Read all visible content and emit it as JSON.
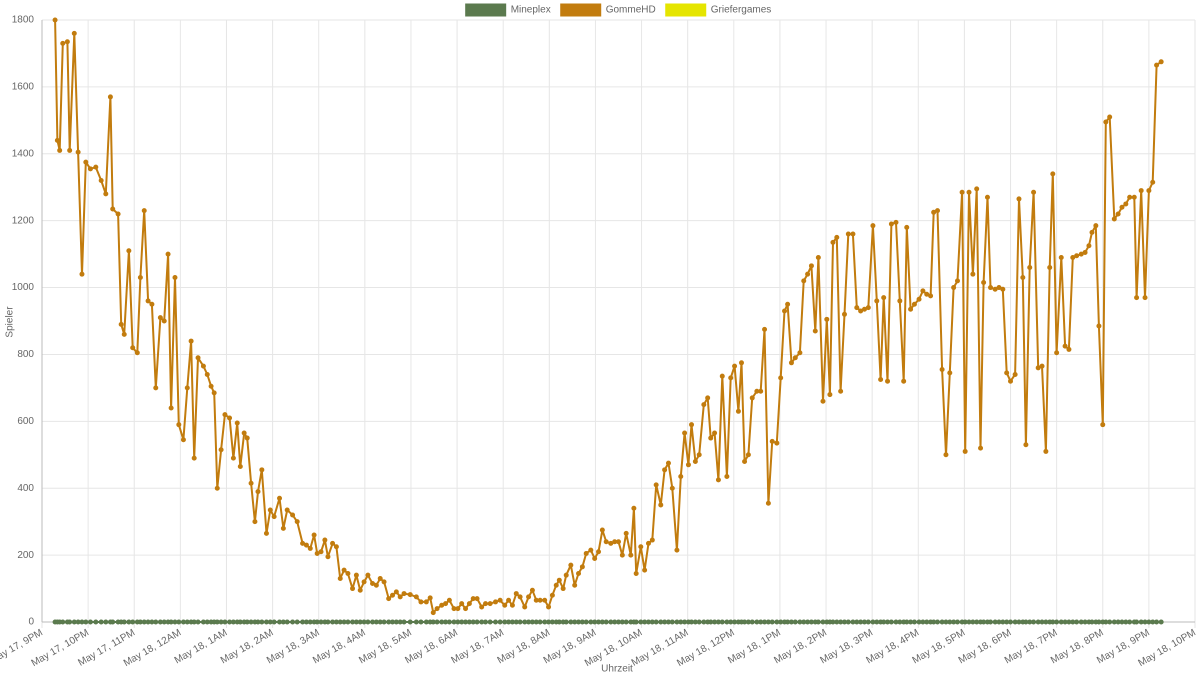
{
  "chart_data": {
    "type": "line",
    "xlabel": "Uhrzeit",
    "ylabel": "Spieler",
    "grid": true,
    "legend": "top",
    "xlim": [
      0,
      1500
    ],
    "xticks": [
      {
        "value": 0,
        "label": "May 17, 9PM"
      },
      {
        "value": 60,
        "label": "May 17, 10PM"
      },
      {
        "value": 120,
        "label": "May 17, 11PM"
      },
      {
        "value": 180,
        "label": "May 18, 12AM"
      },
      {
        "value": 240,
        "label": "May 18, 1AM"
      },
      {
        "value": 300,
        "label": "May 18, 2AM"
      },
      {
        "value": 360,
        "label": "May 18, 3AM"
      },
      {
        "value": 420,
        "label": "May 18, 4AM"
      },
      {
        "value": 480,
        "label": "May 18, 5AM"
      },
      {
        "value": 540,
        "label": "May 18, 6AM"
      },
      {
        "value": 600,
        "label": "May 18, 7AM"
      },
      {
        "value": 660,
        "label": "May 18, 8AM"
      },
      {
        "value": 720,
        "label": "May 18, 9AM"
      },
      {
        "value": 780,
        "label": "May 18, 10AM"
      },
      {
        "value": 840,
        "label": "May 18, 11AM"
      },
      {
        "value": 900,
        "label": "May 18, 12PM"
      },
      {
        "value": 960,
        "label": "May 18, 1PM"
      },
      {
        "value": 1020,
        "label": "May 18, 2PM"
      },
      {
        "value": 1080,
        "label": "May 18, 3PM"
      },
      {
        "value": 1140,
        "label": "May 18, 4PM"
      },
      {
        "value": 1200,
        "label": "May 18, 5PM"
      },
      {
        "value": 1260,
        "label": "May 18, 6PM"
      },
      {
        "value": 1320,
        "label": "May 18, 7PM"
      },
      {
        "value": 1380,
        "label": "May 18, 8PM"
      },
      {
        "value": 1440,
        "label": "May 18, 9PM"
      },
      {
        "value": 1500,
        "label": "May 18, 10PM"
      }
    ],
    "ylim": [
      0,
      1800
    ],
    "yticks": [
      0,
      200,
      400,
      600,
      800,
      1000,
      1200,
      1400,
      1600,
      1800
    ],
    "x": [
      17,
      20,
      23,
      27,
      33,
      36,
      42,
      47,
      52,
      57,
      63,
      70,
      77,
      83,
      89,
      92,
      99,
      103,
      107,
      113,
      118,
      124,
      128,
      133,
      138,
      143,
      148,
      154,
      159,
      164,
      168,
      173,
      178,
      184,
      189,
      194,
      198,
      203,
      210,
      215,
      220,
      224,
      228,
      233,
      238,
      244,
      249,
      254,
      258,
      263,
      267,
      272,
      277,
      281,
      286,
      292,
      297,
      302,
      309,
      314,
      319,
      326,
      332,
      339,
      344,
      349,
      354,
      358,
      363,
      368,
      372,
      378,
      383,
      388,
      393,
      398,
      404,
      409,
      414,
      419,
      424,
      430,
      435,
      440,
      445,
      451,
      456,
      461,
      466,
      471,
      479,
      487,
      493,
      500,
      505,
      509,
      514,
      520,
      525,
      530,
      536,
      541,
      546,
      551,
      556,
      561,
      566,
      572,
      577,
      583,
      590,
      596,
      602,
      607,
      612,
      617,
      622,
      628,
      633,
      638,
      643,
      648,
      654,
      659,
      664,
      669,
      673,
      678,
      682,
      688,
      693,
      698,
      703,
      708,
      714,
      719,
      724,
      729,
      734,
      740,
      745,
      750,
      755,
      760,
      766,
      770,
      773,
      779,
      784,
      789,
      794,
      799,
      805,
      810,
      815,
      820,
      826,
      831,
      836,
      841,
      845,
      850,
      855,
      861,
      866,
      870,
      875,
      880,
      885,
      891,
      896,
      901,
      906,
      910,
      914,
      919,
      924,
      930,
      935,
      940,
      945,
      950,
      956,
      961,
      966,
      970,
      975,
      980,
      986,
      991,
      996,
      1001,
      1006,
      1010,
      1016,
      1021,
      1025,
      1029,
      1034,
      1039,
      1044,
      1049,
      1055,
      1060,
      1065,
      1070,
      1075,
      1081,
      1086,
      1091,
      1095,
      1100,
      1105,
      1111,
      1116,
      1121,
      1125,
      1130,
      1135,
      1141,
      1146,
      1151,
      1156,
      1160,
      1165,
      1171,
      1176,
      1181,
      1186,
      1191,
      1197,
      1201,
      1206,
      1211,
      1216,
      1221,
      1225,
      1230,
      1234,
      1240,
      1245,
      1250,
      1255,
      1260,
      1266,
      1271,
      1276,
      1280,
      1285,
      1290,
      1296,
      1301,
      1306,
      1311,
      1315,
      1320,
      1326,
      1331,
      1336,
      1341,
      1346,
      1352,
      1357,
      1362,
      1366,
      1371,
      1375,
      1380,
      1384,
      1389,
      1395,
      1400,
      1405,
      1410,
      1415,
      1421,
      1424,
      1430,
      1435,
      1440,
      1445,
      1450,
      1456
    ],
    "series": [
      {
        "name": "Mineplex",
        "color": "#5b7a4e",
        "values": [
          0,
          0,
          0,
          0,
          0,
          0,
          0,
          0,
          0,
          0,
          0,
          0,
          0,
          0,
          0,
          0,
          0,
          0,
          0,
          0,
          0,
          0,
          0,
          0,
          0,
          0,
          0,
          0,
          0,
          0,
          0,
          0,
          0,
          0,
          0,
          0,
          0,
          0,
          0,
          0,
          0,
          0,
          0,
          0,
          0,
          0,
          0,
          0,
          0,
          0,
          0,
          0,
          0,
          0,
          0,
          0,
          0,
          0,
          0,
          0,
          0,
          0,
          0,
          0,
          0,
          0,
          0,
          0,
          0,
          0,
          0,
          0,
          0,
          0,
          0,
          0,
          0,
          0,
          0,
          0,
          0,
          0,
          0,
          0,
          0,
          0,
          0,
          0,
          0,
          0,
          0,
          0,
          0,
          0,
          0,
          0,
          0,
          0,
          0,
          0,
          0,
          0,
          0,
          0,
          0,
          0,
          0,
          0,
          0,
          0,
          0,
          0,
          0,
          0,
          0,
          0,
          0,
          0,
          0,
          0,
          0,
          0,
          0,
          0,
          0,
          0,
          0,
          0,
          0,
          0,
          0,
          0,
          0,
          0,
          0,
          0,
          0,
          0,
          0,
          0,
          0,
          0,
          0,
          0,
          0,
          0,
          0,
          0,
          0,
          0,
          0,
          0,
          0,
          0,
          0,
          0,
          0,
          0,
          0,
          0,
          0,
          0,
          0,
          0,
          0,
          0,
          0,
          0,
          0,
          0,
          0,
          0,
          0,
          0,
          0,
          0,
          0,
          0,
          0,
          0,
          0,
          0,
          0,
          0,
          0,
          0,
          0,
          0,
          0,
          0,
          0,
          0,
          0,
          0,
          0,
          0,
          0,
          0,
          0,
          0,
          0,
          0,
          0,
          0,
          0,
          0,
          0,
          0,
          0,
          0,
          0,
          0,
          0,
          0,
          0,
          0,
          0,
          0,
          0,
          0,
          0,
          0,
          0,
          0,
          0,
          0,
          0,
          0,
          0,
          0,
          0,
          0,
          0,
          0,
          0,
          0,
          0,
          0,
          0,
          0,
          0,
          0,
          0,
          0,
          0,
          0,
          0,
          0,
          0,
          0,
          0,
          0,
          0,
          0,
          0,
          0,
          0,
          0,
          0,
          0,
          0,
          0,
          0,
          0,
          0,
          0,
          0,
          0,
          0,
          0,
          0,
          0,
          0,
          0,
          0,
          0,
          0,
          0,
          0,
          0,
          0,
          0,
          0
        ]
      },
      {
        "name": "GommeHD",
        "color": "#c27c0e",
        "values": [
          1800,
          1440,
          1410,
          1730,
          1735,
          1410,
          1760,
          1405,
          1040,
          1375,
          1355,
          1360,
          1320,
          1280,
          1570,
          1235,
          1220,
          890,
          860,
          1110,
          820,
          805,
          1030,
          1230,
          960,
          950,
          700,
          910,
          900,
          1100,
          640,
          1030,
          590,
          545,
          700,
          840,
          490,
          790,
          765,
          740,
          705,
          685,
          400,
          515,
          620,
          610,
          490,
          595,
          465,
          565,
          550,
          415,
          300,
          390,
          455,
          265,
          335,
          315,
          370,
          280,
          335,
          320,
          300,
          235,
          230,
          220,
          260,
          205,
          210,
          245,
          195,
          235,
          225,
          130,
          155,
          145,
          100,
          140,
          95,
          120,
          140,
          115,
          110,
          130,
          120,
          70,
          80,
          90,
          75,
          85,
          82,
          75,
          60,
          60,
          72,
          28,
          40,
          50,
          55,
          65,
          40,
          40,
          55,
          40,
          55,
          70,
          70,
          45,
          55,
          55,
          60,
          65,
          50,
          65,
          50,
          85,
          75,
          45,
          75,
          95,
          65,
          65,
          65,
          45,
          80,
          110,
          125,
          100,
          140,
          170,
          110,
          145,
          165,
          205,
          215,
          190,
          210,
          275,
          240,
          235,
          240,
          240,
          200,
          265,
          200,
          340,
          145,
          225,
          155,
          235,
          245,
          410,
          350,
          455,
          475,
          400,
          215,
          435,
          565,
          470,
          590,
          480,
          500,
          650,
          670,
          550,
          565,
          425,
          735,
          435,
          730,
          765,
          630,
          775,
          480,
          500,
          670,
          690,
          690,
          875,
          355,
          540,
          535,
          730,
          930,
          950,
          775,
          790,
          805,
          1020,
          1040,
          1065,
          870,
          1090,
          660,
          905,
          680,
          1135,
          1150,
          690,
          920,
          1160,
          1160,
          940,
          930,
          935,
          940,
          1185,
          960,
          725,
          970,
          720,
          1190,
          1195,
          960,
          720,
          1180,
          935,
          950,
          965,
          990,
          980,
          975,
          1225,
          1230,
          755,
          500,
          745,
          1000,
          1020,
          1285,
          510,
          1285,
          1040,
          1295,
          520,
          1015,
          1270,
          1000,
          995,
          1000,
          995,
          745,
          720,
          740,
          1265,
          1030,
          530,
          1060,
          1285,
          760,
          765,
          510,
          1060,
          1340,
          805,
          1090,
          825,
          815,
          1090,
          1095,
          1100,
          1105,
          1125,
          1165,
          1185,
          885,
          590,
          1495,
          1510,
          1205,
          1220,
          1240,
          1250,
          1270,
          1270,
          970,
          1290,
          970,
          1290,
          1315,
          1665,
          1675
        ]
      },
      {
        "name": "Griefergames",
        "color": "#e5e500"
      }
    ]
  }
}
